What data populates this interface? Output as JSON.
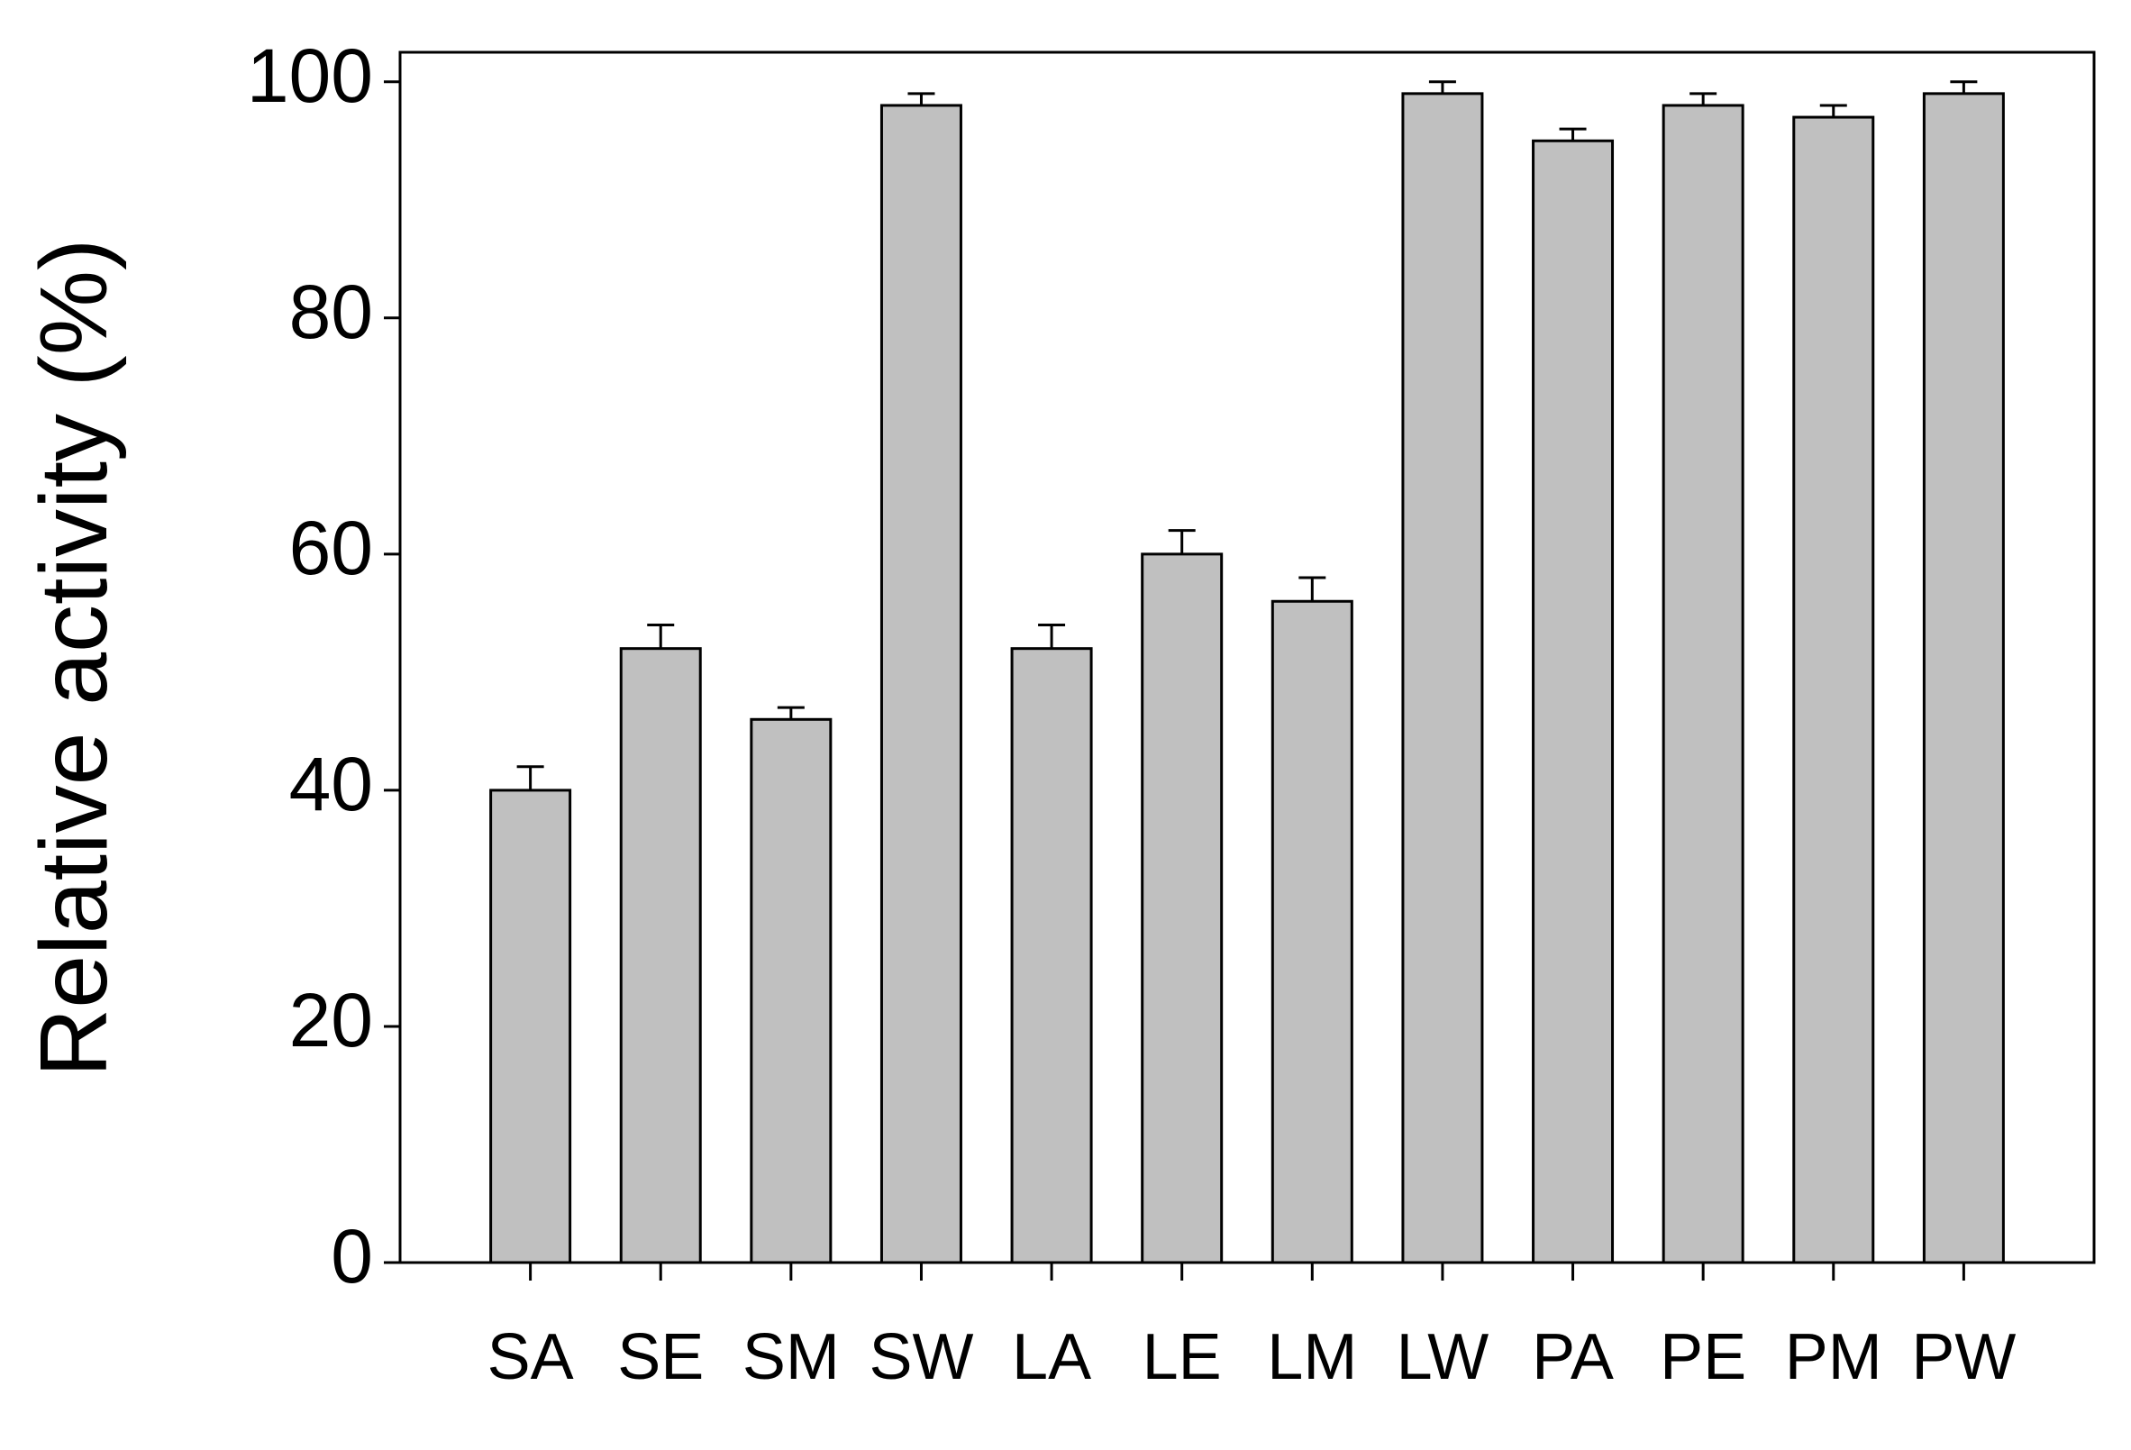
{
  "chart_data": {
    "type": "bar",
    "y_label": "Relative activity (%)",
    "categories": [
      "SA",
      "SE",
      "SM",
      "SW",
      "LA",
      "LE",
      "LM",
      "LW",
      "PA",
      "PE",
      "PM",
      "PW"
    ],
    "values": [
      40,
      52,
      46,
      98,
      52,
      60,
      56,
      99,
      95,
      98,
      97,
      99
    ],
    "errors": [
      2,
      2,
      1,
      1,
      2,
      2,
      2,
      1,
      1,
      1,
      1,
      1
    ],
    "color": "#c0c0c0",
    "ylim": [
      0,
      102.5
    ],
    "yticks": [
      0,
      20,
      40,
      60,
      80,
      100
    ]
  }
}
